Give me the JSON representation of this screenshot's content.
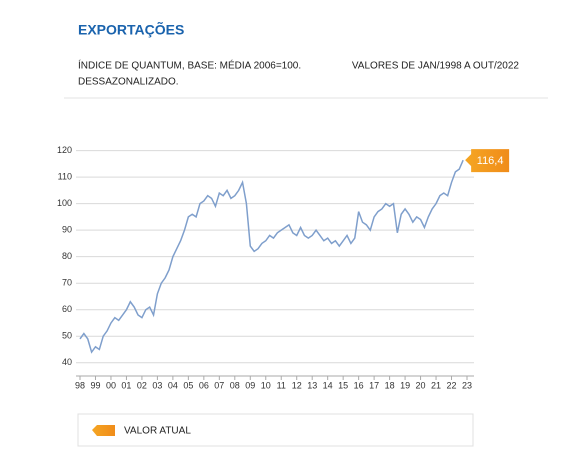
{
  "chart_data": {
    "type": "line",
    "title": "EXPORTAÇÕES",
    "subtitle": "ÍNDICE DE QUANTUM, BASE: MÉDIA 2006=100.",
    "subtitle_2": "DESSAZONALIZADO.",
    "period": "VALORES DE JAN/1998 A OUT/2022",
    "x": [
      1998,
      1998.25,
      1998.5,
      1998.75,
      1999,
      1999.25,
      1999.5,
      1999.75,
      2000,
      2000.25,
      2000.5,
      2000.75,
      2001,
      2001.25,
      2001.5,
      2001.75,
      2002,
      2002.25,
      2002.5,
      2002.75,
      2003,
      2003.25,
      2003.5,
      2003.75,
      2004,
      2004.25,
      2004.5,
      2004.75,
      2005,
      2005.25,
      2005.5,
      2005.75,
      2006,
      2006.25,
      2006.5,
      2006.75,
      2007,
      2007.25,
      2007.5,
      2007.75,
      2008,
      2008.25,
      2008.5,
      2008.75,
      2009,
      2009.25,
      2009.5,
      2009.75,
      2010,
      2010.25,
      2010.5,
      2010.75,
      2011,
      2011.25,
      2011.5,
      2011.75,
      2012,
      2012.25,
      2012.5,
      2012.75,
      2013,
      2013.25,
      2013.5,
      2013.75,
      2014,
      2014.25,
      2014.5,
      2014.75,
      2015,
      2015.25,
      2015.5,
      2015.75,
      2016,
      2016.25,
      2016.5,
      2016.75,
      2017,
      2017.25,
      2017.5,
      2017.75,
      2018,
      2018.25,
      2018.5,
      2018.75,
      2019,
      2019.25,
      2019.5,
      2019.75,
      2020,
      2020.25,
      2020.5,
      2020.75,
      2021,
      2021.25,
      2021.5,
      2021.75,
      2022,
      2022.25,
      2022.5,
      2022.75
    ],
    "series": [
      {
        "color": "#7f9fcc",
        "values": [
          49,
          51,
          49,
          44,
          46,
          45,
          50,
          52,
          55,
          57,
          56,
          58,
          60,
          63,
          61,
          58,
          57,
          60,
          61,
          58,
          66,
          70,
          72,
          75,
          80,
          83,
          86,
          90,
          95,
          96,
          95,
          100,
          101,
          103,
          102,
          99,
          104,
          103,
          105,
          102,
          103,
          105,
          108,
          100,
          84,
          82,
          83,
          85,
          86,
          88,
          87,
          89,
          90,
          91,
          92,
          89,
          88,
          91,
          88,
          87,
          88,
          90,
          88,
          86,
          87,
          85,
          86,
          84,
          86,
          88,
          85,
          87,
          97,
          93,
          92,
          90,
          95,
          97,
          98,
          100,
          99,
          100,
          89,
          96,
          98,
          96,
          93,
          95,
          94,
          91,
          95,
          98,
          100,
          103,
          104,
          103,
          108,
          112,
          113,
          116.4
        ]
      }
    ],
    "xlim": [
      1998,
      2023
    ],
    "xticks": [
      {
        "value": 1998,
        "label": "98"
      },
      {
        "value": 1999,
        "label": "99"
      },
      {
        "value": 2000,
        "label": "00"
      },
      {
        "value": 2001,
        "label": "01"
      },
      {
        "value": 2002,
        "label": "02"
      },
      {
        "value": 2003,
        "label": "03"
      },
      {
        "value": 2004,
        "label": "04"
      },
      {
        "value": 2005,
        "label": "05"
      },
      {
        "value": 2006,
        "label": "06"
      },
      {
        "value": 2007,
        "label": "07"
      },
      {
        "value": 2008,
        "label": "08"
      },
      {
        "value": 2009,
        "label": "09"
      },
      {
        "value": 2010,
        "label": "10"
      },
      {
        "value": 2011,
        "label": "11"
      },
      {
        "value": 2012,
        "label": "12"
      },
      {
        "value": 2013,
        "label": "13"
      },
      {
        "value": 2014,
        "label": "14"
      },
      {
        "value": 2015,
        "label": "15"
      },
      {
        "value": 2016,
        "label": "16"
      },
      {
        "value": 2017,
        "label": "17"
      },
      {
        "value": 2018,
        "label": "18"
      },
      {
        "value": 2019,
        "label": "19"
      },
      {
        "value": 2020,
        "label": "20"
      },
      {
        "value": 2021,
        "label": "21"
      },
      {
        "value": 2022,
        "label": "22"
      },
      {
        "value": 2023,
        "label": "23"
      }
    ],
    "ylim": [
      35,
      124
    ],
    "yticks": [
      40,
      50,
      60,
      70,
      80,
      90,
      100,
      110,
      120
    ],
    "grid": true,
    "annotation": {
      "text": "116,4",
      "color": "#f08c1a",
      "legend": "VALOR ATUAL"
    }
  }
}
